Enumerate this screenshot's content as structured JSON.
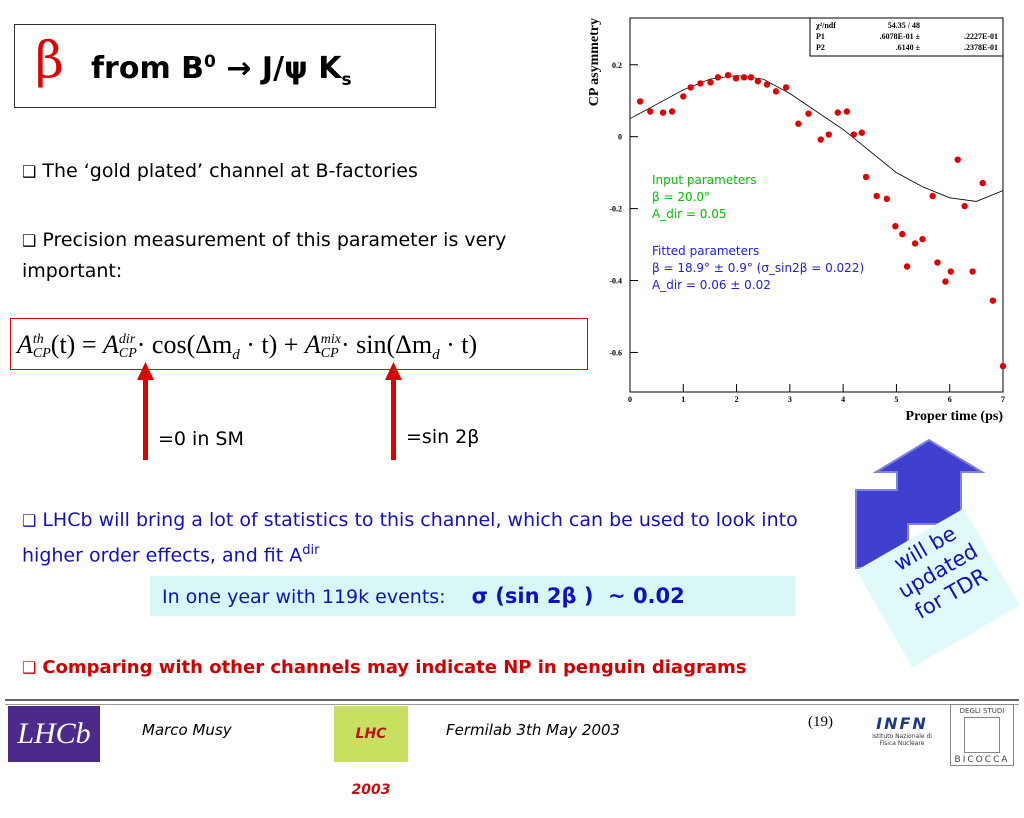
{
  "title": {
    "beta": "β",
    "from": "from B",
    "sup": "0",
    "rest": "→ J/ψ K",
    "sub": "s"
  },
  "bullets": [
    {
      "text": "The ‘gold plated’ channel at B-factories"
    },
    {
      "text": "Precision measurement of this parameter is very important:"
    },
    {
      "text": "LHCb will bring a lot of statistics to this channel, which can be used to look into higher order effects, and fit A",
      "sup": "dir"
    },
    {
      "text": "Comparing with other channels may indicate NP in penguin diagrams"
    }
  ],
  "formula": {
    "a1": "A",
    "a1_sup": "th",
    "a1_sub": "CP",
    "t1": "(t) = ",
    "a2": "A",
    "a2_sup": "dir",
    "a2_sub": "CP",
    "t2": "· cos(Δm",
    "d1": "d",
    "t3": " · t) + ",
    "a3": "A",
    "a3_sup": "mix",
    "a3_sub": "CP",
    "t4": "· sin(Δm",
    "d2": "d",
    "t5": " · t)"
  },
  "arrow_labels": [
    "=0 in SM",
    "=sin 2β"
  ],
  "highlight": {
    "text": "In one year with 119k events:",
    "result": "σ (sin 2β )  ~ 0.02"
  },
  "note": [
    "will be",
    "updated",
    "for TDR"
  ],
  "footer": {
    "author": "Marco Musy",
    "event": "Fermilab 3th May 2003",
    "page": "(19)",
    "logo_lhcb": "LHCb",
    "logo_lhc": "LHC 2003",
    "logo_infn": "INFN",
    "logo_infn_sub": "Istituto Nazionale di Fisica Nucleare",
    "logo_uni": "DEGLI STUDI",
    "logo_uni2": "BICOCCA"
  },
  "plot": {
    "ylabel": "CP asymmetry",
    "xlabel": "Proper time (ps)",
    "xlim": [
      0,
      7
    ],
    "ylim": [
      -0.71,
      0.33
    ],
    "xticks": [
      0,
      1,
      2,
      3,
      4,
      5,
      6,
      7
    ],
    "yticks": [
      0.2,
      0,
      -0.2,
      -0.4,
      -0.6
    ],
    "stats": [
      [
        "χ²/ndf",
        "54.35  /  48",
        ""
      ],
      [
        "P1",
        ".6078E-01 ±",
        ".2227E-01"
      ],
      [
        "P2",
        ".6140 ±",
        ".2378E-01"
      ]
    ],
    "input": [
      "Input parameters",
      "β = 20.0°",
      "A_dir = 0.05"
    ],
    "fitted": [
      "Fitted parameters",
      "β = 18.9° ± 0.9° (σ_sin2β = 0.022)",
      "A_dir = 0.06 ± 0.02"
    ],
    "points": {
      "x": [
        0.19,
        0.38,
        0.62,
        0.79,
        1.0,
        1.14,
        1.32,
        1.51,
        1.65,
        1.84,
        1.99,
        2.14,
        2.27,
        2.4,
        2.57,
        2.74,
        2.93,
        3.16,
        3.35,
        3.58,
        3.73,
        3.9,
        4.07,
        4.2,
        4.35,
        4.43,
        4.63,
        4.82,
        4.98,
        5.11,
        5.2,
        5.35,
        5.49,
        5.68,
        5.77,
        5.92,
        6.02,
        6.15,
        6.28,
        6.43,
        6.62,
        6.81,
        7.0
      ],
      "y": [
        0.098,
        0.07,
        0.067,
        0.07,
        0.112,
        0.137,
        0.148,
        0.151,
        0.165,
        0.171,
        0.162,
        0.165,
        0.165,
        0.154,
        0.145,
        0.126,
        0.137,
        0.036,
        0.064,
        -0.008,
        0.006,
        0.067,
        0.07,
        0.006,
        0.011,
        -0.112,
        -0.165,
        -0.173,
        -0.249,
        -0.271,
        -0.361,
        -0.297,
        -0.285,
        -0.165,
        -0.35,
        -0.403,
        -0.375,
        -0.064,
        -0.193,
        -0.375,
        -0.129,
        -0.456,
        -0.638
      ]
    },
    "fit": {
      "x": [
        0,
        0.5,
        1,
        1.5,
        2,
        2.5,
        3,
        3.5,
        4,
        4.5,
        5,
        5.5,
        6,
        6.5,
        7
      ],
      "y": [
        0.05,
        0.09,
        0.13,
        0.16,
        0.17,
        0.16,
        0.12,
        0.07,
        0.02,
        -0.04,
        -0.1,
        -0.14,
        -0.17,
        -0.18,
        -0.15
      ]
    }
  }
}
